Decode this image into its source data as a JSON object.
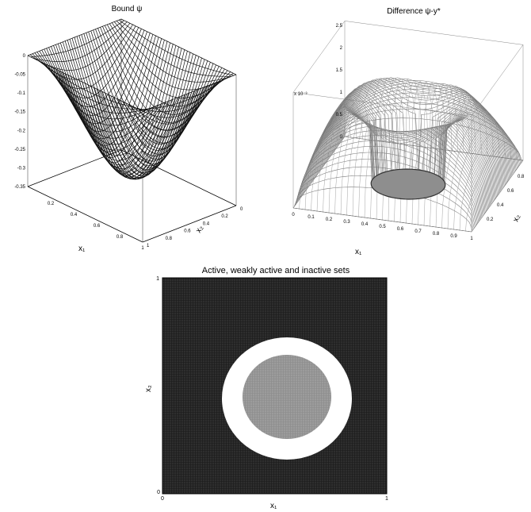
{
  "chart_data": [
    {
      "type": "surface3d",
      "title": "Bound ψ",
      "xlabel": "x₁",
      "ylabel": "x₂",
      "zlim": [
        -0.35,
        0
      ],
      "z_ticks": [
        "0",
        "-0.05",
        "-0.1",
        "-0.15",
        "-0.2",
        "-0.25",
        "-0.3",
        "-0.35"
      ],
      "x_ticks": [
        "0",
        "0.2",
        "0.4",
        "0.6",
        "0.8",
        "1"
      ],
      "y_ticks": [
        "0",
        "0.2",
        "0.4",
        "0.6",
        "0.8",
        "1"
      ],
      "surface": "z = -0.3 · sin(π·x₁) · sin(π·x₂)",
      "minimum": {
        "x1": 0.5,
        "x2": 0.5,
        "z": -0.3
      },
      "edge_value": 0,
      "style": "black wireframe"
    },
    {
      "type": "surface3d",
      "title": "Difference ψ-y*",
      "xlabel": "x₁",
      "ylabel": "x₂",
      "z_exponent": "x 10⁻³",
      "z_ticks": [
        "0",
        "0.5",
        "1",
        "1.5",
        "2",
        "2.5"
      ],
      "x_ticks": [
        "0",
        "0.1",
        "0.2",
        "0.3",
        "0.4",
        "0.5",
        "0.6",
        "0.7",
        "0.8",
        "0.9",
        "1"
      ],
      "y_ticks": [
        "0",
        "0.2",
        "0.4",
        "0.6",
        "0.8"
      ],
      "zero_region": "disk centered at (0.5, 0.5), radius ≈ 0.2",
      "style": "grey wireframe with flat shaded disk"
    },
    {
      "type": "heatmap",
      "title": "Active, weakly active and inactive sets",
      "xlabel": "x₁",
      "ylabel": "x₂",
      "x_ticks": [
        "0",
        "1"
      ],
      "y_ticks": [
        "0",
        "1"
      ],
      "regions": [
        {
          "set": "outer",
          "color": "#2b2b2b",
          "extent": "whole square outside white ring"
        },
        {
          "set": "ring",
          "color": "#ffffff",
          "center": [
            0.58,
            0.42
          ],
          "outer_radius": 0.3
        },
        {
          "set": "inner",
          "color": "#9a9a9a",
          "center": [
            0.58,
            0.43
          ],
          "radius": 0.2
        }
      ]
    }
  ]
}
